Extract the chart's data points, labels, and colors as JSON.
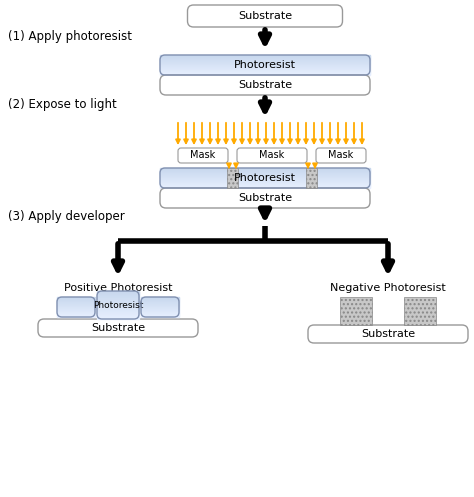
{
  "bg_color": "#ffffff",
  "text_color": "#000000",
  "photoresist_color": "#c8d8ee",
  "photoresist_edge": "#8090b0",
  "photoresist_grad_top": "#dce8f8",
  "substrate_color": "#ffffff",
  "substrate_edge": "#999999",
  "mask_color": "#ffffff",
  "mask_edge": "#999999",
  "hatch_fc": "#c8c8c8",
  "hatch_ec": "#888888",
  "arrow_color": "#000000",
  "light_color": "#ffaa00",
  "step1_label": "(1) Apply photoresist",
  "step2_label": "(2) Expose to light",
  "step3_label": "(3) Apply developer",
  "pos_label": "Positive Photoresist",
  "neg_label": "Negative Photoresist",
  "photoresist_text": "Photoresist",
  "substrate_text": "Substrate",
  "mask_text": "Mask",
  "figw": 4.74,
  "figh": 4.97,
  "dpi": 100
}
